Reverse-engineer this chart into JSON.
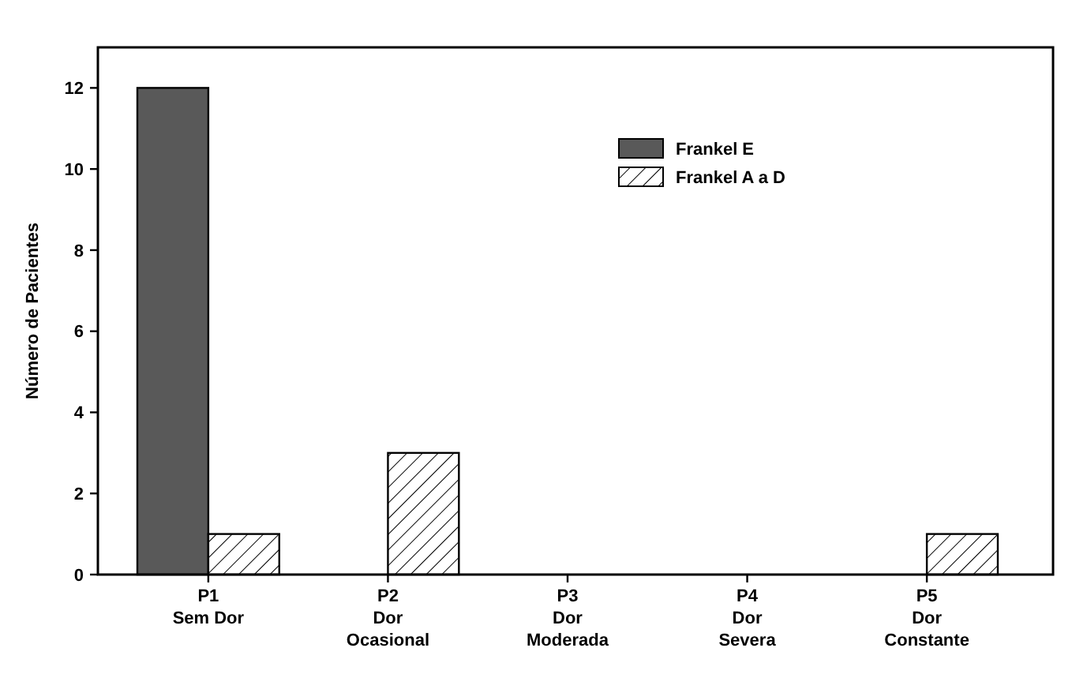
{
  "chart_data": {
    "type": "bar",
    "ylabel": "Número de Pacientes",
    "categories": [
      "P1\nSem Dor",
      "P2\nDor\nOcasional",
      "P3\nDor\nModerada",
      "P4\nDor\nSevera",
      "P5\nDor\nConstante"
    ],
    "series": [
      {
        "name": "Frankel E",
        "color": "#595959",
        "values": [
          12,
          0,
          0,
          0,
          0
        ]
      },
      {
        "name": "Frankel A a D",
        "color": "#000000",
        "values": [
          1,
          3,
          0,
          0,
          1
        ]
      }
    ],
    "ylim": [
      0,
      13
    ],
    "yticks": [
      0,
      2,
      4,
      6,
      8,
      10,
      12
    ],
    "legend": "top right"
  }
}
